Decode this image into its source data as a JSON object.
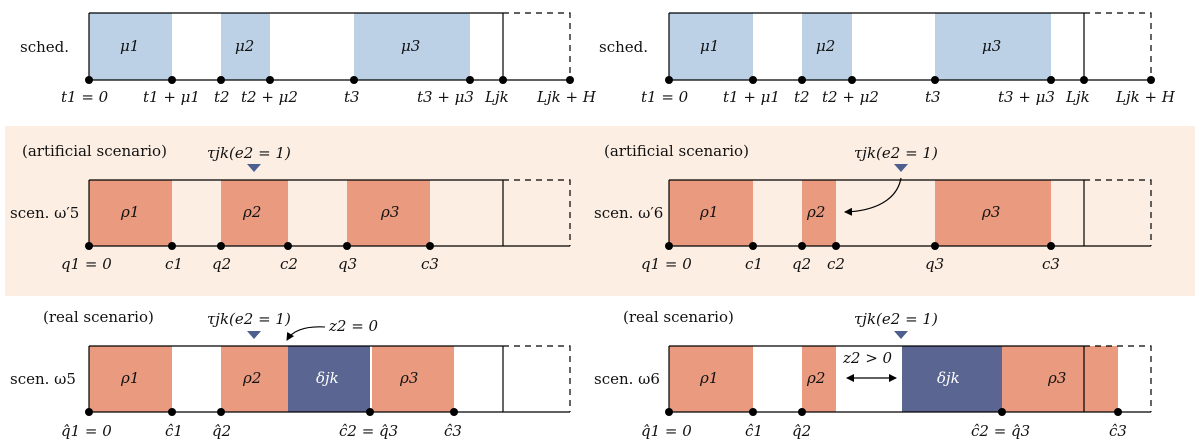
{
  "colors": {
    "schedule_fill": "#bcd0e6",
    "task_fill": "#e99a7f",
    "delay_fill": "#5a6591",
    "scenario_bg": "#fdeee3",
    "marker_fill": "#4d5f8f",
    "line": "#000000"
  },
  "panels": [
    {
      "id": "sched-left",
      "row_label": "sched.",
      "blocks": [
        "μ1",
        "μ2",
        "μ3"
      ],
      "points": [
        "t1 = 0",
        "t1 + μ1",
        "t2",
        "t2 + μ2",
        "t3",
        "t3 + μ3",
        "Ljk",
        "Ljk + H"
      ]
    },
    {
      "id": "sched-right",
      "row_label": "sched.",
      "blocks": [
        "μ1",
        "μ2",
        "μ3"
      ],
      "points": [
        "t1 = 0",
        "t1 + μ1",
        "t2",
        "t2 + μ2",
        "t3",
        "t3 + μ3",
        "Ljk",
        "Ljk + H"
      ]
    },
    {
      "id": "artificial-left",
      "header": "(artificial scenario)",
      "row_label": "scen. ω′5",
      "marker": "τjk(e2 = 1)",
      "blocks": [
        "ρ1",
        "ρ2",
        "ρ3"
      ],
      "points": [
        "q1 = 0",
        "c1",
        "q2",
        "c2",
        "q3",
        "c3"
      ]
    },
    {
      "id": "artificial-right",
      "header": "(artificial scenario)",
      "row_label": "scen. ω′6",
      "marker": "τjk(e2 = 1)",
      "blocks": [
        "ρ1",
        "ρ2",
        "ρ3"
      ],
      "points": [
        "q1 = 0",
        "c1",
        "q2",
        "c2",
        "q3",
        "c3"
      ]
    },
    {
      "id": "real-left",
      "header": "(real scenario)",
      "row_label": "scen. ω5",
      "marker": "τjk(e2 = 1)",
      "annotation": "z2 = 0",
      "blocks": [
        "ρ1",
        "ρ2",
        "δjk",
        "ρ3"
      ],
      "points": [
        "q̂1 = 0",
        "ĉ1",
        "q̂2",
        "ĉ2 = q̂3",
        "ĉ3"
      ]
    },
    {
      "id": "real-right",
      "header": "(real scenario)",
      "row_label": "scen. ω6",
      "marker": "τjk(e2 = 1)",
      "annotation": "z2 > 0",
      "blocks": [
        "ρ1",
        "ρ2",
        "δjk",
        "ρ3"
      ],
      "points": [
        "q̂1 = 0",
        "ĉ1",
        "q̂2",
        "ĉ2 = q̂3",
        "ĉ3"
      ]
    }
  ]
}
